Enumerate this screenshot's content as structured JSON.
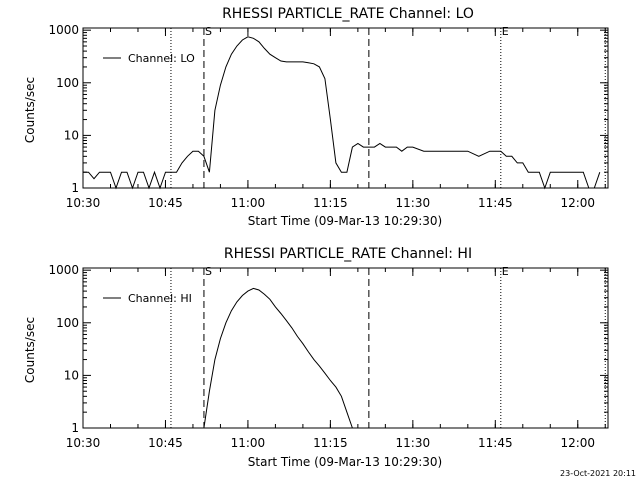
{
  "stamp": "23-Oct-2021 20:11",
  "chart_data": [
    {
      "type": "line",
      "title": "RHESSI PARTICLE_RATE Channel: LO",
      "xlabel": "Start Time (09-Mar-13 10:29:30)",
      "ylabel": "Counts/sec",
      "y_scale": "log",
      "xlim": [
        "10:30",
        "12:05:30"
      ],
      "ylim": [
        1,
        1100
      ],
      "x_ticks": [
        "10:30",
        "10:45",
        "11:00",
        "11:15",
        "11:30",
        "11:45",
        "12:00"
      ],
      "y_ticks": [
        "1",
        "10",
        "100",
        "1000"
      ],
      "legend": "top-left",
      "series": [
        {
          "name": "Channel: LO",
          "x": [
            "10:30",
            "10:31",
            "10:32",
            "10:33",
            "10:34",
            "10:35",
            "10:36",
            "10:37",
            "10:38",
            "10:39",
            "10:40",
            "10:41",
            "10:42",
            "10:43",
            "10:44",
            "10:45",
            "10:46",
            "10:47",
            "10:48",
            "10:49",
            "10:50",
            "10:51",
            "10:52",
            "10:53",
            "10:54",
            "10:55",
            "10:56",
            "10:57",
            "10:58",
            "10:59",
            "11:00",
            "11:01",
            "11:02",
            "11:03",
            "11:04",
            "11:05",
            "11:06",
            "11:07",
            "11:08",
            "11:09",
            "11:10",
            "11:11",
            "11:12",
            "11:13",
            "11:14",
            "11:15",
            "11:16",
            "11:17",
            "11:18",
            "11:19",
            "11:20",
            "11:21",
            "11:22",
            "11:23",
            "11:24",
            "11:25",
            "11:26",
            "11:27",
            "11:28",
            "11:29",
            "11:30",
            "11:32",
            "11:34",
            "11:36",
            "11:38",
            "11:40",
            "11:42",
            "11:44",
            "11:46",
            "11:47",
            "11:48",
            "11:49",
            "11:50",
            "11:51",
            "11:52",
            "11:53",
            "11:54",
            "11:55",
            "11:56",
            "11:57",
            "11:58",
            "11:59",
            "12:00",
            "12:01",
            "12:02",
            "12:03",
            "12:04"
          ],
          "y": [
            2,
            2,
            1.5,
            2,
            2,
            2,
            1,
            2,
            2,
            1,
            2,
            2,
            1,
            2,
            1,
            2,
            2,
            2,
            3,
            4,
            5,
            5,
            4,
            2,
            30,
            90,
            200,
            350,
            500,
            650,
            750,
            700,
            600,
            450,
            350,
            300,
            260,
            250,
            250,
            250,
            250,
            240,
            230,
            200,
            120,
            20,
            3,
            2,
            2,
            6,
            7,
            6,
            6,
            6,
            7,
            6,
            6,
            6,
            5,
            6,
            6,
            5,
            5,
            5,
            5,
            5,
            4,
            5,
            5,
            4,
            4,
            3,
            3,
            2,
            2,
            2,
            1,
            2,
            2,
            2,
            2,
            2,
            2,
            2,
            1,
            1,
            2
          ]
        }
      ],
      "markers": [
        {
          "time": "10:46",
          "style": "dotted",
          "label": ""
        },
        {
          "time": "10:52",
          "style": "dashed",
          "label": "S"
        },
        {
          "time": "11:22",
          "style": "dashed",
          "label": ""
        },
        {
          "time": "11:46",
          "style": "dotted",
          "label": "E"
        },
        {
          "time": "12:05",
          "style": "dotted",
          "label": ""
        }
      ]
    },
    {
      "type": "line",
      "title": "RHESSI PARTICLE_RATE Channel: HI",
      "xlabel": "Start Time (09-Mar-13 10:29:30)",
      "ylabel": "Counts/sec",
      "y_scale": "log",
      "xlim": [
        "10:30",
        "12:05:30"
      ],
      "ylim": [
        1,
        1100
      ],
      "x_ticks": [
        "10:30",
        "10:45",
        "11:00",
        "11:15",
        "11:30",
        "11:45",
        "12:00"
      ],
      "y_ticks": [
        "1",
        "10",
        "100",
        "1000"
      ],
      "legend": "top-left",
      "series": [
        {
          "name": "Channel: HI",
          "x": [
            "10:52",
            "10:53",
            "10:54",
            "10:55",
            "10:56",
            "10:57",
            "10:58",
            "10:59",
            "11:00",
            "11:01",
            "11:02",
            "11:03",
            "11:04",
            "11:05",
            "11:06",
            "11:07",
            "11:08",
            "11:09",
            "11:10",
            "11:11",
            "11:12",
            "11:13",
            "11:14",
            "11:15",
            "11:16",
            "11:17",
            "11:18",
            "11:19"
          ],
          "y": [
            1,
            5,
            20,
            50,
            100,
            170,
            250,
            330,
            400,
            450,
            420,
            350,
            280,
            200,
            150,
            110,
            80,
            55,
            40,
            28,
            20,
            15,
            11,
            8,
            6,
            4,
            2,
            1
          ]
        }
      ],
      "markers": [
        {
          "time": "10:46",
          "style": "dotted",
          "label": ""
        },
        {
          "time": "10:52",
          "style": "dashed",
          "label": "S"
        },
        {
          "time": "11:22",
          "style": "dashed",
          "label": ""
        },
        {
          "time": "11:46",
          "style": "dotted",
          "label": "E"
        },
        {
          "time": "12:05",
          "style": "dotted",
          "label": ""
        }
      ]
    }
  ]
}
